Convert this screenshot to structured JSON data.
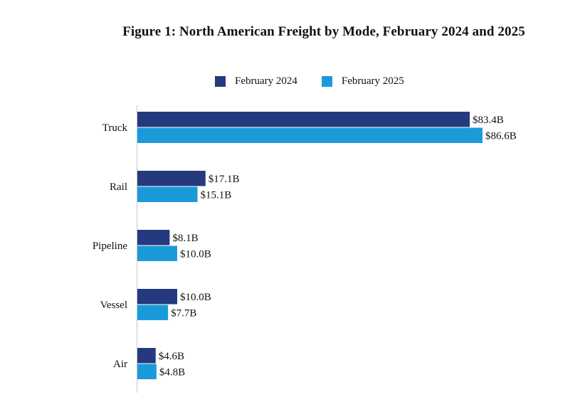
{
  "chart_data": {
    "type": "bar",
    "orientation": "horizontal",
    "title": "Figure 1: North American Freight by Mode, February 2024 and 2025",
    "categories": [
      "Truck",
      "Rail",
      "Pipeline",
      "Vessel",
      "Air"
    ],
    "series": [
      {
        "name": "February 2024",
        "color": "#253a7e",
        "values": [
          83.4,
          17.1,
          8.1,
          10.0,
          4.6
        ],
        "labels": [
          "$83.4B",
          "$17.1B",
          "$8.1B",
          "$10.0B",
          "$4.6B"
        ]
      },
      {
        "name": "February 2025",
        "color": "#1b9ad9",
        "values": [
          86.6,
          15.1,
          10.0,
          7.7,
          4.8
        ],
        "labels": [
          "$86.6B",
          "$15.1B",
          "$10.0B",
          "$7.7B",
          "$4.8B"
        ]
      }
    ],
    "xlim": [
      0,
      100
    ],
    "legend_position": "top",
    "grid": false
  }
}
